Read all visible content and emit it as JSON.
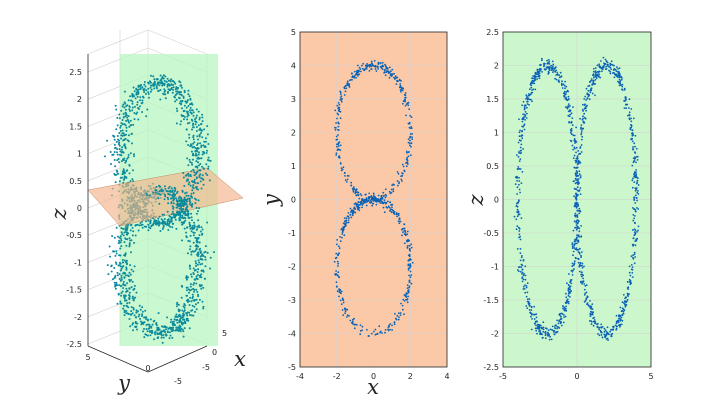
{
  "colors": {
    "points_3d": "#0b8a9b",
    "points_2d": "#0a62b5",
    "plane_xz": "#b8f5c0",
    "plane_xy": "#f2b48a",
    "panel_bg_xy": "#fcc9a8",
    "panel_bg_yz": "#ccf7cc"
  },
  "chart_data": [
    {
      "type": "scatter",
      "projection": "3d",
      "description_of_data": "two rings stacked along z; planes x=0 (green) and z=0 (orange)",
      "xlabel": "x",
      "ylabel": "y",
      "zlabel": "z",
      "xlim": [
        -5,
        5
      ],
      "ylim": [
        -5,
        5
      ],
      "zlim": [
        -2.5,
        2.5
      ],
      "xticks": [
        "5",
        "0",
        "-5"
      ],
      "yticks": [
        "5",
        "0",
        "-5"
      ],
      "zticks": [
        "2.5",
        "2",
        "1.5",
        "1",
        "0.5",
        "0",
        "-0.5",
        "-1",
        "-1.5",
        "-2",
        "-2.5"
      ],
      "grid": true
    },
    {
      "type": "scatter",
      "xlabel": "x",
      "ylabel": "y",
      "xlim": [
        -4,
        4
      ],
      "ylim": [
        -5,
        5
      ],
      "xticks": [
        "-4",
        "-2",
        "0",
        "2",
        "4"
      ],
      "yticks": [
        "5",
        "4",
        "3",
        "2",
        "1",
        "0",
        "-1",
        "-2",
        "-3",
        "-4",
        "-5"
      ],
      "series": [
        {
          "shape": "ellipse",
          "center": [
            0,
            2
          ],
          "radius_x": 2,
          "radius_y": 2
        },
        {
          "shape": "ellipse",
          "center": [
            0,
            -2
          ],
          "radius_x": 2,
          "radius_y": 2
        }
      ],
      "grid": true
    },
    {
      "type": "scatter",
      "xlabel": "",
      "ylabel": "z",
      "xlim": [
        -5,
        5
      ],
      "ylim": [
        -2.5,
        2.5
      ],
      "xticks": [
        "-5",
        "0",
        "5"
      ],
      "yticks": [
        "2.5",
        "2",
        "1.5",
        "1",
        "0.5",
        "0",
        "-0.5",
        "-1",
        "-1.5",
        "-2",
        "-2.5"
      ],
      "series": [
        {
          "shape": "ellipse",
          "center": [
            -2,
            0
          ],
          "radius_x": 2,
          "radius_y": 2
        },
        {
          "shape": "ellipse",
          "center": [
            2,
            0
          ],
          "radius_x": 2,
          "radius_y": 2
        }
      ],
      "grid": true
    }
  ]
}
